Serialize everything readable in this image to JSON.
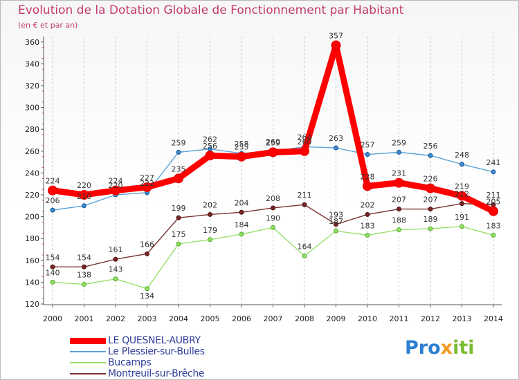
{
  "title": "Evolution de la Dotation Globale de Fonctionnement par Habitant",
  "subtitle": "(en € et par an)",
  "logo": {
    "part1": "Pro",
    "part2": "x",
    "part3": "iti"
  },
  "chart_data": {
    "type": "line",
    "title": "Evolution de la Dotation Globale de Fonctionnement par Habitant",
    "subtitle": "(en € et par an)",
    "xlabel": "",
    "ylabel": "",
    "x": [
      "2000",
      "2001",
      "2002",
      "2003",
      "2004",
      "2005",
      "2006",
      "2007",
      "2008",
      "2009",
      "2010",
      "2011",
      "2012",
      "2013",
      "2014"
    ],
    "yticks": [
      120,
      140,
      160,
      180,
      200,
      220,
      240,
      260,
      280,
      300,
      320,
      340,
      360
    ],
    "ylim": [
      120,
      365
    ],
    "grid": "vertical-dashed",
    "legend_position": "bottom-left",
    "series": [
      {
        "name": "LE QUESNEL-AUBRY",
        "color": "#ff0000",
        "values": [
          224,
          220,
          224,
          227,
          235,
          256,
          255,
          259,
          260,
          357,
          228,
          231,
          226,
          219,
          205
        ]
      },
      {
        "name": "Le Plessier-sur-Bulles",
        "color": "#5ba3d9",
        "values": [
          206,
          210,
          220,
          222,
          259,
          262,
          258,
          260,
          264,
          263,
          257,
          259,
          256,
          248,
          241
        ]
      },
      {
        "name": "Bucamps",
        "color": "#99e06a",
        "values": [
          140,
          138,
          143,
          134,
          175,
          179,
          184,
          190,
          164,
          187,
          183,
          188,
          189,
          191,
          183
        ]
      },
      {
        "name": "Montreuil-sur-Brêche",
        "color": "#7a3030",
        "values": [
          154,
          154,
          161,
          166,
          199,
          202,
          204,
          208,
          211,
          193,
          202,
          207,
          207,
          212,
          211
        ]
      }
    ]
  }
}
